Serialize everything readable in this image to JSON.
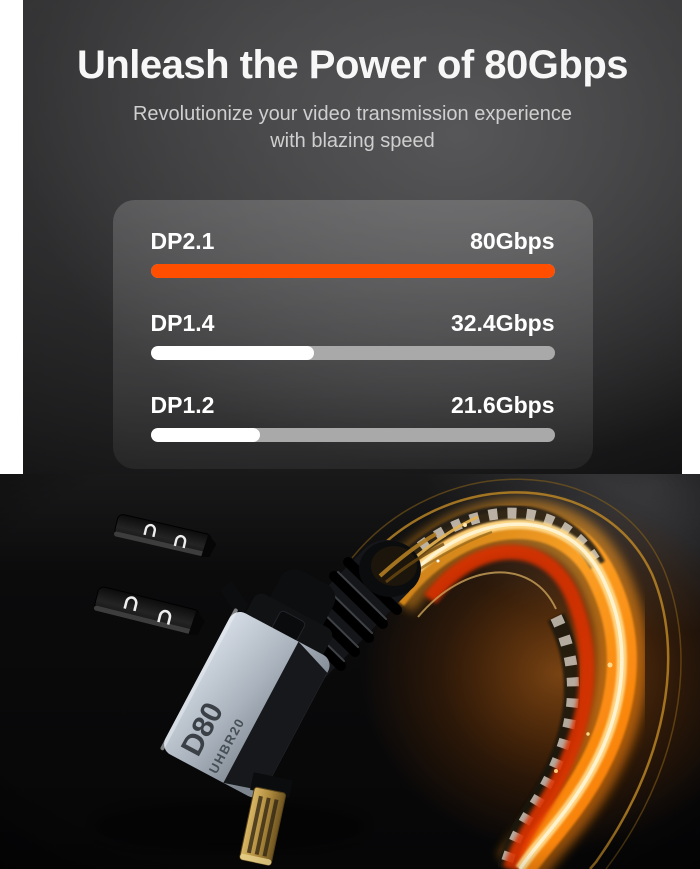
{
  "header": {
    "title": "Unleash the Power of 80Gbps",
    "subtitle_line1": "Revolutionize your video transmission experience",
    "subtitle_line2": "with blazing speed"
  },
  "chart_data": {
    "type": "bar",
    "orientation": "horizontal",
    "title": "Unleash the Power of 80Gbps",
    "subtitle": "Revolutionize your video transmission experience with blazing speed",
    "categories": [
      "DP2.1",
      "DP1.4",
      "DP1.2"
    ],
    "values": [
      80,
      32.4,
      21.6
    ],
    "value_labels": [
      "80Gbps",
      "32.4Gbps",
      "21.6Gbps"
    ],
    "unit": "Gbps",
    "xlim": [
      0,
      80
    ],
    "grid": false,
    "legend": false,
    "highlight_index": 0,
    "highlight_color": "#ff4e00",
    "bar_color": "#ffffff",
    "track_color": "#a9a9a9"
  },
  "product": {
    "connector_label_line1": "D80",
    "connector_label_line2": "UHBR20"
  },
  "colors": {
    "page_margin": "#ffffff",
    "panel_top": "#272728",
    "panel_bottom": "#121213",
    "photo_background": "#08080a",
    "accent_orange": "#ff4e00",
    "glow_gold": "#ffb53a",
    "glow_red": "#e03a00",
    "connector_body": "#b9c2cc"
  }
}
